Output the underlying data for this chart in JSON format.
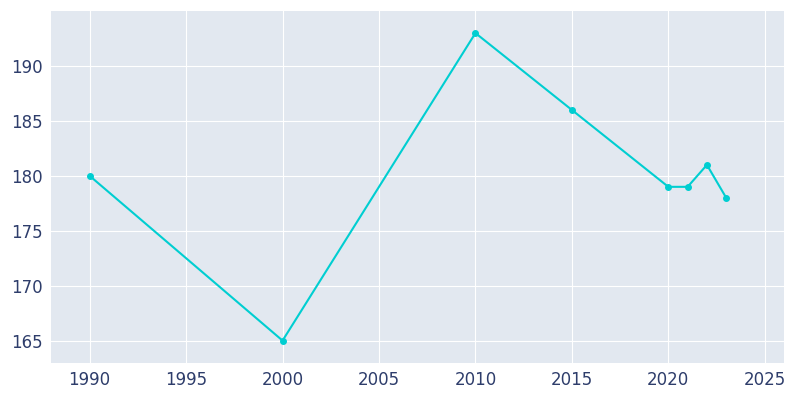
{
  "years": [
    1990,
    2000,
    2010,
    2015,
    2020,
    2021,
    2022,
    2023
  ],
  "population": [
    180,
    165,
    193,
    186,
    179,
    179,
    181,
    178
  ],
  "line_color": "#00CED1",
  "fig_bg_color": "#FFFFFF",
  "plot_bg_color": "#E2E8F0",
  "xlim": [
    1988,
    2026
  ],
  "ylim": [
    163,
    195
  ],
  "xticks": [
    1990,
    1995,
    2000,
    2005,
    2010,
    2015,
    2020,
    2025
  ],
  "yticks": [
    165,
    170,
    175,
    180,
    185,
    190
  ],
  "tick_color": "#2E3D6B",
  "grid_color": "#FFFFFF"
}
